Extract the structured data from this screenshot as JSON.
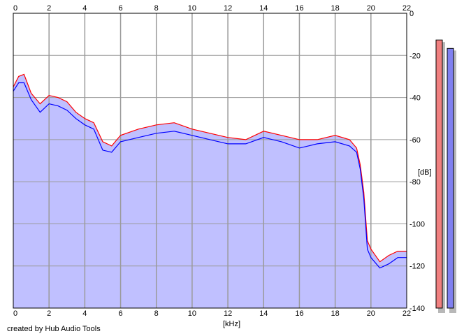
{
  "app": {
    "credit": "created by Hub Audio Tools"
  },
  "chart_data": {
    "type": "area",
    "xlabel": "[kHz]",
    "ylabel": "[dB]",
    "xlim": [
      0,
      22
    ],
    "ylim": [
      -140,
      0
    ],
    "x_ticks": [
      0,
      2,
      4,
      6,
      8,
      10,
      12,
      14,
      16,
      18,
      20,
      22
    ],
    "y_tick_values": [
      0,
      -20,
      -40,
      -60,
      -80,
      -100,
      -120,
      -140
    ],
    "y_tick_labels": [
      "0",
      "-20",
      "-40",
      "-60",
      "-80",
      "-100",
      "-120",
      "-140"
    ],
    "grid": true,
    "fill_color": "#c0c0ff",
    "series": [
      {
        "color": "#ff0000",
        "x": [
          0.0,
          0.3,
          0.6,
          1.0,
          1.5,
          2.0,
          2.5,
          3.0,
          3.5,
          4.0,
          4.5,
          5.0,
          5.5,
          6.0,
          7.0,
          8.0,
          9.0,
          10.0,
          11.0,
          12.0,
          13.0,
          14.0,
          15.0,
          16.0,
          16.5,
          17.0,
          18.0,
          18.8,
          19.2,
          19.4,
          19.6,
          19.8,
          20.0,
          20.5,
          21.0,
          21.5,
          22.0
        ],
        "values": [
          -35,
          -30,
          -29,
          -38,
          -43,
          -39,
          -40,
          -42,
          -47,
          -50,
          -52,
          -61,
          -63,
          -58,
          -55,
          -53,
          -52,
          -55,
          -57,
          -59,
          -60,
          -56,
          -58,
          -60,
          -60,
          -60,
          -58,
          -60,
          -64,
          -72,
          -85,
          -108,
          -112,
          -118,
          -115,
          -113,
          -113
        ]
      },
      {
        "color": "#0000ff",
        "x": [
          0.0,
          0.3,
          0.6,
          1.0,
          1.5,
          2.0,
          2.5,
          3.0,
          3.5,
          4.0,
          4.5,
          5.0,
          5.5,
          6.0,
          7.0,
          8.0,
          9.0,
          10.0,
          11.0,
          12.0,
          13.0,
          14.0,
          15.0,
          16.0,
          16.5,
          17.0,
          18.0,
          18.8,
          19.2,
          19.4,
          19.6,
          19.8,
          20.0,
          20.5,
          21.0,
          21.5,
          22.0
        ],
        "values": [
          -37,
          -33,
          -33,
          -41,
          -47,
          -43,
          -44,
          -46,
          -50,
          -53,
          -55,
          -65,
          -66,
          -61,
          -59,
          -57,
          -56,
          -58,
          -60,
          -62,
          -62,
          -59,
          -61,
          -64,
          -63,
          -62,
          -61,
          -63,
          -66,
          -74,
          -88,
          -112,
          -116,
          -121,
          -119,
          -116,
          -116
        ]
      }
    ],
    "level_meters": [
      {
        "color": "#f08080",
        "level": 0.95
      },
      {
        "color": "#8080f0",
        "level": 0.92
      }
    ]
  }
}
